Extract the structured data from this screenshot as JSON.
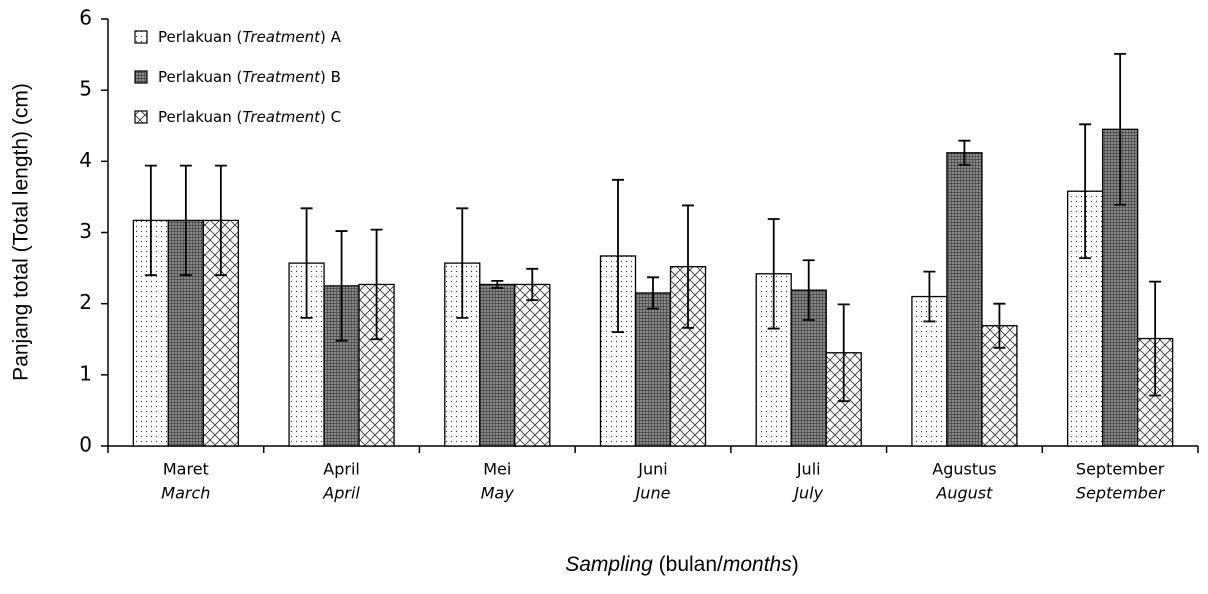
{
  "chart_data": {
    "type": "bar",
    "y_label": "Panjang total (Total length) (cm)",
    "x_label": [
      "Sampling",
      " (bulan/",
      "months",
      ")"
    ],
    "categories": [
      "Maret",
      "April",
      "Mei",
      "Juni",
      "Juli",
      "Agustus",
      "September"
    ],
    "category_translations": [
      "March",
      "April",
      "May",
      "June",
      "July",
      "August",
      "September"
    ],
    "series": [
      {
        "name": "Perlakuan (Treatment) A",
        "color": "#ffffff",
        "pattern": "dots",
        "values": [
          3.17,
          2.57,
          2.57,
          2.67,
          2.42,
          2.1,
          3.58
        ],
        "errors": [
          0.77,
          0.77,
          0.77,
          1.07,
          0.77,
          0.35,
          0.94
        ]
      },
      {
        "name": "Perlakuan (Treatment) B",
        "color": "#8a8a8a",
        "pattern": "grid",
        "values": [
          3.17,
          2.25,
          2.27,
          2.15,
          2.19,
          4.12,
          4.45
        ],
        "errors": [
          0.77,
          0.77,
          0.05,
          0.22,
          0.42,
          0.17,
          1.06
        ]
      },
      {
        "name": "Perlakuan (Treatment) C",
        "color": "#ffffff",
        "pattern": "cross",
        "values": [
          3.17,
          2.27,
          2.27,
          2.52,
          1.31,
          1.69,
          1.51
        ],
        "errors": [
          0.77,
          0.77,
          0.22,
          0.86,
          0.68,
          0.31,
          0.8
        ]
      }
    ],
    "ylim": [
      0,
      6
    ],
    "yticks": [
      0,
      1,
      2,
      3,
      4,
      5,
      6
    ],
    "grid": false,
    "legend": "top-left"
  }
}
